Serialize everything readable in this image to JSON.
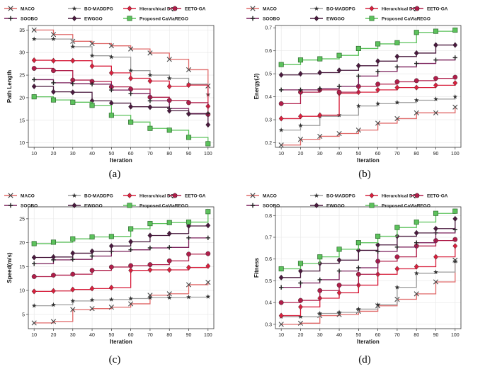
{
  "chart_data": [
    {
      "type": "line",
      "panel_label": "(a)",
      "xlabel": "Iteration",
      "ylabel": "Path Length",
      "x": [
        10,
        20,
        30,
        40,
        50,
        60,
        70,
        80,
        90,
        100
      ],
      "xlim": [
        7,
        103
      ],
      "ylim": [
        9,
        36
      ],
      "yticks": [
        10,
        15,
        20,
        25,
        30,
        35
      ],
      "grid": true,
      "legend": "top",
      "series": [
        {
          "name": "MACO",
          "values": [
            35,
            34,
            32.5,
            32,
            31.5,
            30.8,
            29.9,
            28.5,
            26.2,
            22.6
          ]
        },
        {
          "name": "BO-MADDPG",
          "values": [
            33,
            33,
            31.3,
            29.3,
            29,
            26,
            25,
            24.3,
            23,
            20.7
          ]
        },
        {
          "name": "Hierarchical DQN",
          "values": [
            28.3,
            28.2,
            28.2,
            27,
            25.5,
            24.3,
            23.7,
            22.5,
            22.8,
            18.1
          ]
        },
        {
          "name": "EETO-GA",
          "values": [
            26.5,
            26,
            23.9,
            23.6,
            22.4,
            21.9,
            20.1,
            19.4,
            18.9,
            16.3
          ]
        },
        {
          "name": "SOOBO",
          "values": [
            24,
            23.3,
            23.1,
            23,
            21.7,
            20.9,
            19.3,
            17.6,
            16.5,
            16.5
          ]
        },
        {
          "name": "EWGGO",
          "values": [
            22.5,
            21.3,
            21.2,
            19.3,
            18.8,
            18,
            17.9,
            17.1,
            16.4,
            14
          ]
        },
        {
          "name": "Proposed CaViaREGO",
          "values": [
            20.2,
            19.5,
            19,
            18.3,
            16.1,
            14.6,
            13.2,
            12.8,
            11.2,
            9.8
          ]
        }
      ]
    },
    {
      "type": "line",
      "panel_label": "(b)",
      "xlabel": "Iteration",
      "ylabel": "Energy(J)",
      "x": [
        10,
        20,
        30,
        40,
        50,
        60,
        70,
        80,
        90,
        100
      ],
      "xlim": [
        7,
        103
      ],
      "ylim": [
        0.18,
        0.71
      ],
      "yticks": [
        0.2,
        0.3,
        0.4,
        0.5,
        0.6,
        0.7
      ],
      "grid": true,
      "legend": "top",
      "series": [
        {
          "name": "MACO",
          "values": [
            0.19,
            0.215,
            0.228,
            0.24,
            0.255,
            0.285,
            0.305,
            0.33,
            0.33,
            0.355
          ]
        },
        {
          "name": "BO-MADDPG",
          "values": [
            0.255,
            0.275,
            0.315,
            0.32,
            0.36,
            0.37,
            0.375,
            0.385,
            0.39,
            0.4
          ]
        },
        {
          "name": "Hierarchical DQN",
          "values": [
            0.305,
            0.315,
            0.32,
            0.415,
            0.42,
            0.43,
            0.44,
            0.44,
            0.45,
            0.46
          ]
        },
        {
          "name": "EETO-GA",
          "values": [
            0.37,
            0.42,
            0.43,
            0.42,
            0.445,
            0.455,
            0.465,
            0.47,
            0.48,
            0.485
          ]
        },
        {
          "name": "SOOBO",
          "values": [
            0.43,
            0.43,
            0.435,
            0.445,
            0.49,
            0.51,
            0.53,
            0.545,
            0.56,
            0.57
          ]
        },
        {
          "name": "EWGGO",
          "values": [
            0.495,
            0.5,
            0.505,
            0.515,
            0.535,
            0.555,
            0.575,
            0.59,
            0.625,
            0.625
          ]
        },
        {
          "name": "Proposed CaViaREGO",
          "values": [
            0.54,
            0.56,
            0.565,
            0.58,
            0.61,
            0.63,
            0.635,
            0.68,
            0.685,
            0.69
          ]
        }
      ]
    },
    {
      "type": "line",
      "panel_label": "(c)",
      "xlabel": "Iteration",
      "ylabel": "Speed(m/s)",
      "x": [
        10,
        20,
        30,
        40,
        50,
        60,
        70,
        80,
        90,
        100
      ],
      "xlim": [
        7,
        103
      ],
      "ylim": [
        2,
        27.5
      ],
      "yticks": [
        5,
        10,
        15,
        20,
        25
      ],
      "grid": true,
      "legend": "top",
      "series": [
        {
          "name": "MACO",
          "values": [
            3.2,
            3.5,
            6,
            6.2,
            6.5,
            7.2,
            9,
            9.3,
            11.2,
            11.7
          ]
        },
        {
          "name": "BO-MADDPG",
          "values": [
            6.8,
            7,
            7.8,
            8,
            8.1,
            8.3,
            8.5,
            8.5,
            8.6,
            8.7
          ]
        },
        {
          "name": "Hierarchical DQN",
          "values": [
            9.8,
            9.9,
            10.2,
            10.4,
            10.6,
            14.2,
            14.3,
            14.3,
            14.8,
            15.1
          ]
        },
        {
          "name": "EETO-GA",
          "values": [
            12.9,
            13.2,
            13.4,
            14.2,
            14.9,
            15.2,
            15.4,
            16.2,
            17.6,
            17.7
          ]
        },
        {
          "name": "SOOBO",
          "values": [
            15.6,
            16.4,
            16.5,
            17.2,
            18.2,
            18.5,
            18.9,
            19,
            21,
            21
          ]
        },
        {
          "name": "EWGGO",
          "values": [
            16.9,
            17,
            17.8,
            18.2,
            19.3,
            20.2,
            21.5,
            21.9,
            23.5,
            23.6
          ]
        },
        {
          "name": "Proposed CaViaREGO",
          "values": [
            19.8,
            20.1,
            20.8,
            21.2,
            21.3,
            22.9,
            24,
            24.2,
            24.3,
            26.5
          ]
        }
      ]
    },
    {
      "type": "line",
      "panel_label": "(d)",
      "xlabel": "Iteration",
      "ylabel": "Fitness",
      "x": [
        10,
        20,
        30,
        40,
        50,
        60,
        70,
        80,
        90,
        100
      ],
      "xlim": [
        7,
        103
      ],
      "ylim": [
        0.28,
        0.84
      ],
      "yticks": [
        0.3,
        0.4,
        0.5,
        0.6,
        0.7,
        0.8
      ],
      "grid": true,
      "legend": "top",
      "series": [
        {
          "name": "MACO",
          "values": [
            0.3,
            0.305,
            0.34,
            0.345,
            0.36,
            0.385,
            0.415,
            0.44,
            0.495,
            0.595
          ]
        },
        {
          "name": "BO-MADDPG",
          "values": [
            0.335,
            0.335,
            0.35,
            0.355,
            0.37,
            0.39,
            0.47,
            0.535,
            0.54,
            0.59
          ]
        },
        {
          "name": "Hierarchical DQN",
          "values": [
            0.34,
            0.38,
            0.42,
            0.445,
            0.48,
            0.53,
            0.555,
            0.565,
            0.61,
            0.66
          ]
        },
        {
          "name": "EETO-GA",
          "values": [
            0.4,
            0.41,
            0.455,
            0.48,
            0.53,
            0.59,
            0.61,
            0.66,
            0.685,
            0.69
          ]
        },
        {
          "name": "SOOBO",
          "values": [
            0.47,
            0.49,
            0.505,
            0.545,
            0.56,
            0.635,
            0.655,
            0.675,
            0.72,
            0.735
          ]
        },
        {
          "name": "EWGGO",
          "values": [
            0.515,
            0.545,
            0.58,
            0.595,
            0.64,
            0.665,
            0.705,
            0.72,
            0.74,
            0.785
          ]
        },
        {
          "name": "Proposed CaViaREGO",
          "values": [
            0.555,
            0.58,
            0.61,
            0.645,
            0.675,
            0.705,
            0.745,
            0.77,
            0.81,
            0.82
          ]
        }
      ]
    }
  ],
  "styles": {
    "MACO": {
      "color": "#e06a6a",
      "marker": "x"
    },
    "BO-MADDPG": {
      "color": "#9e9e9e",
      "marker": "star"
    },
    "Hierarchical DQN": {
      "color": "#d8203d",
      "marker": "diamond"
    },
    "EETO-GA": {
      "color": "#b01e4a",
      "marker": "circle"
    },
    "SOOBO": {
      "color": "#7a1f5a",
      "marker": "plus"
    },
    "EWGGO": {
      "color": "#4a1a3e",
      "marker": "diamond"
    },
    "Proposed CaViaREGO": {
      "color": "#5cc25c",
      "marker": "square"
    }
  }
}
